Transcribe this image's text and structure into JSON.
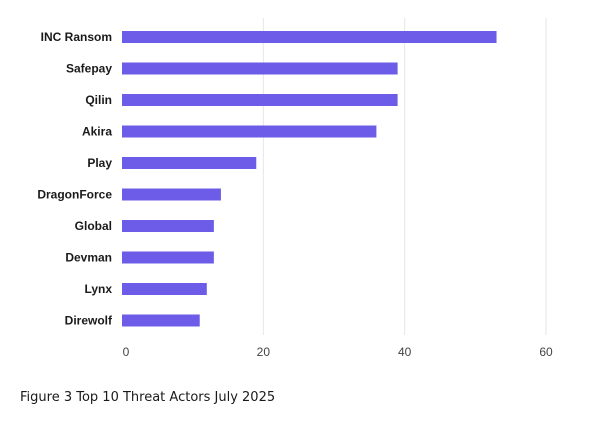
{
  "caption": "Figure 3 Top 10 Threat Actors July 2025",
  "chart_data": {
    "type": "bar",
    "orientation": "horizontal",
    "categories": [
      "INC Ransom",
      "Safepay",
      "Qilin",
      "Akira",
      "Play",
      "DragonForce",
      "Global",
      "Devman",
      "Lynx",
      "Direwolf"
    ],
    "values": [
      53,
      39,
      39,
      36,
      19,
      14,
      13,
      13,
      12,
      11
    ],
    "xlim": [
      0,
      60
    ],
    "xticks": [
      0,
      20,
      40,
      60
    ],
    "grid": "vertical",
    "bar_color": "#6c5ce7",
    "grid_color": "#e6e6e6"
  }
}
